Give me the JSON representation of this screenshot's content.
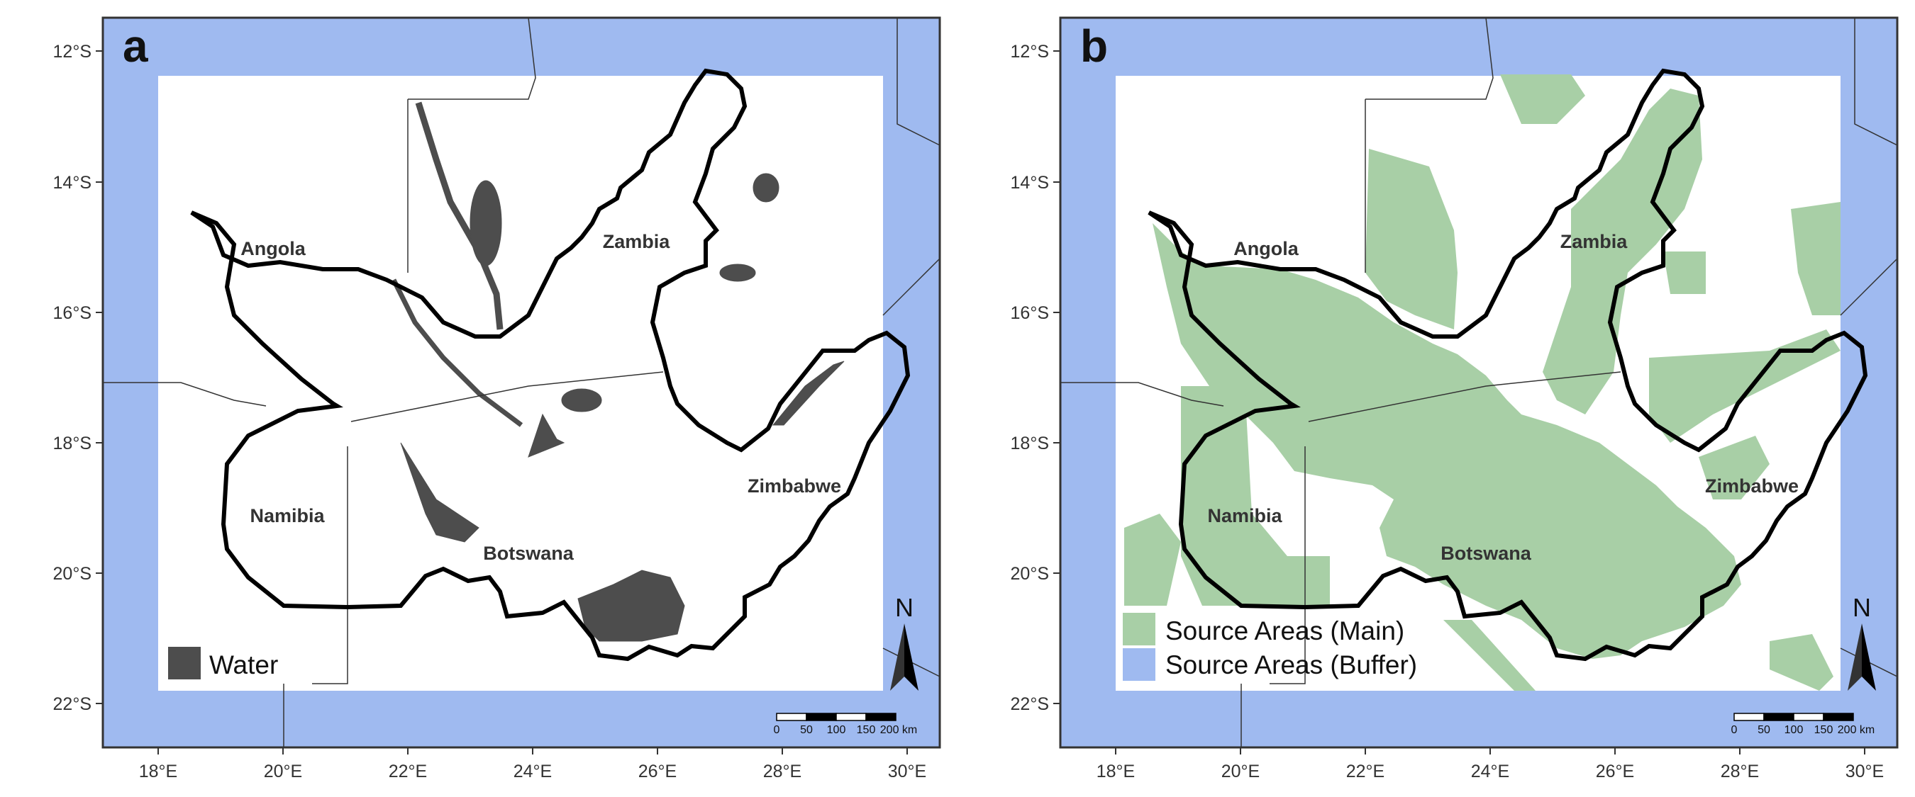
{
  "panels": [
    {
      "letter": "a",
      "legend": [
        {
          "label": "Water",
          "color": "#4d4d4d"
        }
      ]
    },
    {
      "letter": "b",
      "legend": [
        {
          "label": "Source Areas (Main)",
          "color": "#a8cfa6"
        },
        {
          "label": "Source Areas (Buffer)",
          "color": "#9fbaf0"
        }
      ]
    }
  ],
  "axes": {
    "y_ticks": [
      "12°S",
      "14°S",
      "16°S",
      "18°S",
      "20°S",
      "22°S"
    ],
    "x_ticks": [
      "18°E",
      "20°E",
      "22°E",
      "24°E",
      "26°E",
      "28°E",
      "30°E"
    ]
  },
  "countries": [
    "Angola",
    "Zambia",
    "Namibia",
    "Botswana",
    "Zimbabwe"
  ],
  "scale_bar": {
    "labels": [
      "0",
      "50",
      "100",
      "150",
      "200 km"
    ]
  },
  "north_arrow": {
    "label": "N"
  },
  "colors": {
    "buffer": "#9fbaf0",
    "main": "#a8cfa6",
    "water": "#4d4d4d",
    "frame": "#333333"
  }
}
